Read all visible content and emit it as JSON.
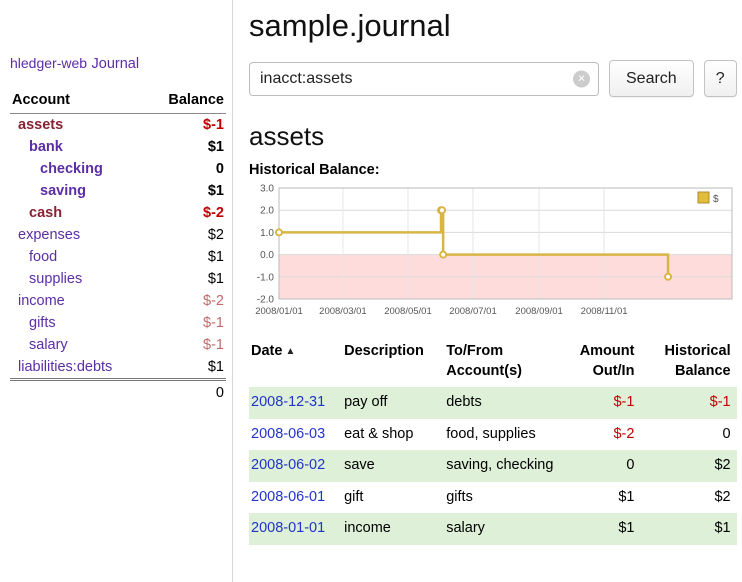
{
  "brand": "hledger-web",
  "nav": {
    "journal": "Journal"
  },
  "sidebar": {
    "col_account": "Account",
    "col_balance": "Balance",
    "accounts": [
      {
        "name": "assets",
        "balance": "$-1"
      },
      {
        "name": "bank",
        "balance": "$1"
      },
      {
        "name": "checking",
        "balance": "0"
      },
      {
        "name": "saving",
        "balance": "$1"
      },
      {
        "name": "cash",
        "balance": "$-2"
      },
      {
        "name": "expenses",
        "balance": "$2"
      },
      {
        "name": "food",
        "balance": "$1"
      },
      {
        "name": "supplies",
        "balance": "$1"
      },
      {
        "name": "income",
        "balance": "$-2"
      },
      {
        "name": "gifts",
        "balance": "$-1"
      },
      {
        "name": "salary",
        "balance": "$-1"
      },
      {
        "name": "liabilities:debts",
        "balance": "$1"
      }
    ],
    "total": "0"
  },
  "header": {
    "title": "sample.journal"
  },
  "search": {
    "value": "inacct:assets",
    "clear_icon": "×",
    "button_label": "Search",
    "help_label": "?"
  },
  "account_page": {
    "title": "assets",
    "chart_title": "Historical Balance:"
  },
  "chart_data": {
    "type": "line",
    "step": true,
    "title": "Historical Balance",
    "series": [
      {
        "name": "$",
        "color": "#d9b545",
        "points": [
          [
            "2008-01-01",
            1.0
          ],
          [
            "2008-06-01",
            2.0
          ],
          [
            "2008-06-02",
            2.0
          ],
          [
            "2008-06-03",
            0.0
          ],
          [
            "2008-12-31",
            -1.0
          ]
        ]
      }
    ],
    "xlim": [
      "2008-01-01",
      "2009-03-01"
    ],
    "ylim": [
      -2.0,
      3.0
    ],
    "yticks": [
      3.0,
      2.0,
      1.0,
      0.0,
      -1.0,
      -2.0
    ],
    "xticks": [
      [
        "2008-01-01",
        "2008/01/01"
      ],
      [
        "2008-03-01",
        "2008/03/01"
      ],
      [
        "2008-05-01",
        "2008/05/01"
      ],
      [
        "2008-07-01",
        "2008/07/01"
      ],
      [
        "2008-09-01",
        "2008/09/01"
      ],
      [
        "2008-11-01",
        "2008/11/01"
      ]
    ],
    "negative_fill": "#ffdcdc",
    "grid": true,
    "legend": {
      "position": "top-right",
      "label": "$",
      "swatch_fill": "#e3bc39",
      "swatch_stroke": "#a98e2c"
    }
  },
  "register": {
    "sort_icon": "▲",
    "col_date": "Date",
    "col_description": "Description",
    "col_account_line1": "To/From",
    "col_account_line2": "Account(s)",
    "col_amount_line1": "Amount",
    "col_amount_line2": "Out/In",
    "col_balance_line1": "Historical",
    "col_balance_line2": "Balance",
    "rows": [
      {
        "date": "2008-12-31",
        "description": "pay off",
        "accounts": "debts",
        "amount": "$-1",
        "balance": "$-1"
      },
      {
        "date": "2008-06-03",
        "description": "eat & shop",
        "accounts": "food, supplies",
        "amount": "$-2",
        "balance": "0"
      },
      {
        "date": "2008-06-02",
        "description": "save",
        "accounts": "saving, checking",
        "amount": "0",
        "balance": "$2"
      },
      {
        "date": "2008-06-01",
        "description": "gift",
        "accounts": "gifts",
        "amount": "$1",
        "balance": "$2"
      },
      {
        "date": "2008-01-01",
        "description": "income",
        "accounts": "salary",
        "amount": "$1",
        "balance": "$1"
      }
    ]
  }
}
